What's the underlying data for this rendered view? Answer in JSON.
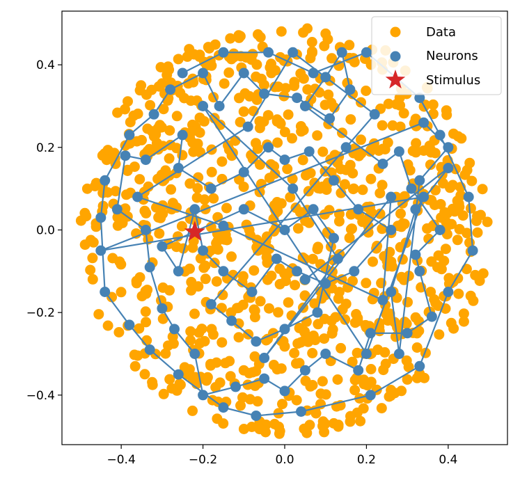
{
  "chart_data": {
    "type": "scatter",
    "title": "",
    "xlabel": "",
    "ylabel": "",
    "xlim": [
      -0.545,
      0.545
    ],
    "ylim": [
      -0.52,
      0.53
    ],
    "grid": false,
    "legend_placement": "top-right",
    "xticks": [
      -0.4,
      -0.2,
      0.0,
      0.2,
      0.4
    ],
    "yticks": [
      -0.4,
      -0.2,
      0.0,
      0.2,
      0.4
    ],
    "xtick_labels": [
      "−0.4",
      "−0.2",
      "0.0",
      "0.2",
      "0.4"
    ],
    "ytick_labels": [
      "−0.4",
      "−0.2",
      "0.0",
      "0.2",
      "0.4"
    ],
    "colors": {
      "data": "#FFA500",
      "neurons": "#4682B4",
      "stimulus": "#D62728"
    },
    "legend": [
      {
        "label": "Data",
        "marker": "circle",
        "color": "#FFA500"
      },
      {
        "label": "Neurons",
        "marker": "circle",
        "color": "#4682B4"
      },
      {
        "label": "Stimulus",
        "marker": "star",
        "color": "#D62728"
      }
    ],
    "series": [
      {
        "name": "Neurons",
        "connected": true,
        "points": [
          [
            -0.25,
            0.38
          ],
          [
            -0.15,
            0.43
          ],
          [
            -0.04,
            0.43
          ],
          [
            0.07,
            0.38
          ],
          [
            0.2,
            0.43
          ],
          [
            0.33,
            0.32
          ],
          [
            0.38,
            0.23
          ],
          [
            0.45,
            0.08
          ],
          [
            0.46,
            -0.05
          ],
          [
            0.4,
            -0.15
          ],
          [
            0.33,
            -0.33
          ],
          [
            0.21,
            -0.4
          ],
          [
            0.04,
            -0.44
          ],
          [
            -0.07,
            -0.45
          ],
          [
            -0.15,
            -0.43
          ],
          [
            -0.26,
            -0.35
          ],
          [
            -0.33,
            -0.29
          ],
          [
            -0.38,
            -0.23
          ],
          [
            -0.44,
            -0.15
          ],
          [
            -0.45,
            0.03
          ],
          [
            -0.44,
            0.12
          ],
          [
            -0.38,
            0.23
          ],
          [
            -0.32,
            0.28
          ],
          [
            -0.28,
            0.34
          ],
          [
            -0.2,
            0.38
          ],
          [
            -0.16,
            0.3
          ],
          [
            -0.1,
            0.38
          ],
          [
            -0.05,
            0.33
          ],
          [
            0.03,
            0.32
          ],
          [
            0.11,
            0.27
          ],
          [
            0.16,
            0.34
          ],
          [
            0.14,
            0.43
          ],
          [
            0.1,
            0.37
          ],
          [
            0.05,
            0.3
          ],
          [
            0.24,
            0.16
          ],
          [
            0.28,
            0.19
          ],
          [
            0.31,
            0.1
          ],
          [
            0.38,
            0.0
          ],
          [
            0.32,
            -0.06
          ],
          [
            0.33,
            -0.1
          ],
          [
            0.36,
            -0.21
          ],
          [
            0.3,
            -0.25
          ],
          [
            0.21,
            -0.25
          ],
          [
            0.18,
            -0.34
          ],
          [
            0.1,
            -0.3
          ],
          [
            0.05,
            -0.34
          ],
          [
            0.0,
            -0.39
          ],
          [
            -0.05,
            -0.36
          ],
          [
            -0.12,
            -0.38
          ],
          [
            -0.2,
            -0.4
          ],
          [
            -0.22,
            -0.3
          ],
          [
            -0.27,
            -0.24
          ],
          [
            -0.3,
            -0.19
          ],
          [
            -0.33,
            -0.09
          ],
          [
            -0.34,
            0.0
          ],
          [
            -0.41,
            0.05
          ],
          [
            -0.39,
            0.18
          ],
          [
            -0.34,
            0.17
          ],
          [
            -0.25,
            0.23
          ],
          [
            -0.26,
            0.15
          ],
          [
            -0.18,
            0.1
          ],
          [
            -0.1,
            0.14
          ],
          [
            -0.04,
            0.2
          ],
          [
            0.0,
            0.17
          ],
          [
            0.06,
            0.19
          ],
          [
            0.12,
            0.12
          ],
          [
            0.18,
            0.05
          ],
          [
            0.26,
            0.0
          ],
          [
            0.17,
            -0.1
          ],
          [
            0.1,
            -0.13
          ],
          [
            0.03,
            -0.1
          ],
          [
            -0.02,
            -0.07
          ],
          [
            -0.08,
            -0.15
          ],
          [
            -0.15,
            -0.1
          ],
          [
            -0.2,
            -0.05
          ],
          [
            -0.22,
            0.05
          ],
          [
            -0.26,
            -0.1
          ],
          [
            -0.3,
            -0.04
          ],
          [
            -0.1,
            0.05
          ],
          [
            0.0,
            0.0
          ],
          [
            0.07,
            0.05
          ],
          [
            0.12,
            -0.02
          ],
          [
            0.08,
            -0.2
          ],
          [
            0.0,
            -0.24
          ],
          [
            -0.07,
            -0.27
          ],
          [
            -0.13,
            -0.22
          ],
          [
            -0.18,
            -0.18
          ],
          [
            0.15,
            0.2
          ],
          [
            0.22,
            0.28
          ],
          [
            0.02,
            0.43
          ],
          [
            -0.09,
            0.25
          ],
          [
            -0.36,
            0.08
          ],
          [
            -0.15,
            0.01
          ],
          [
            0.24,
            -0.17
          ],
          [
            0.26,
            0.08
          ],
          [
            -0.05,
            -0.31
          ],
          [
            0.13,
            -0.07
          ],
          [
            0.02,
            0.1
          ],
          [
            -0.2,
            0.3
          ],
          [
            0.2,
            -0.3
          ],
          [
            0.34,
            0.08
          ],
          [
            -0.45,
            -0.05
          ],
          [
            0.34,
            0.26
          ],
          [
            0.4,
            0.2
          ],
          [
            0.33,
            0.12
          ],
          [
            0.28,
            -0.3
          ],
          [
            0.26,
            -0.15
          ],
          [
            0.32,
            0.05
          ],
          [
            0.4,
            0.15
          ],
          [
            0.05,
            -0.12
          ]
        ]
      }
    ],
    "stimulus": {
      "x": -0.22,
      "y": -0.005
    }
  }
}
